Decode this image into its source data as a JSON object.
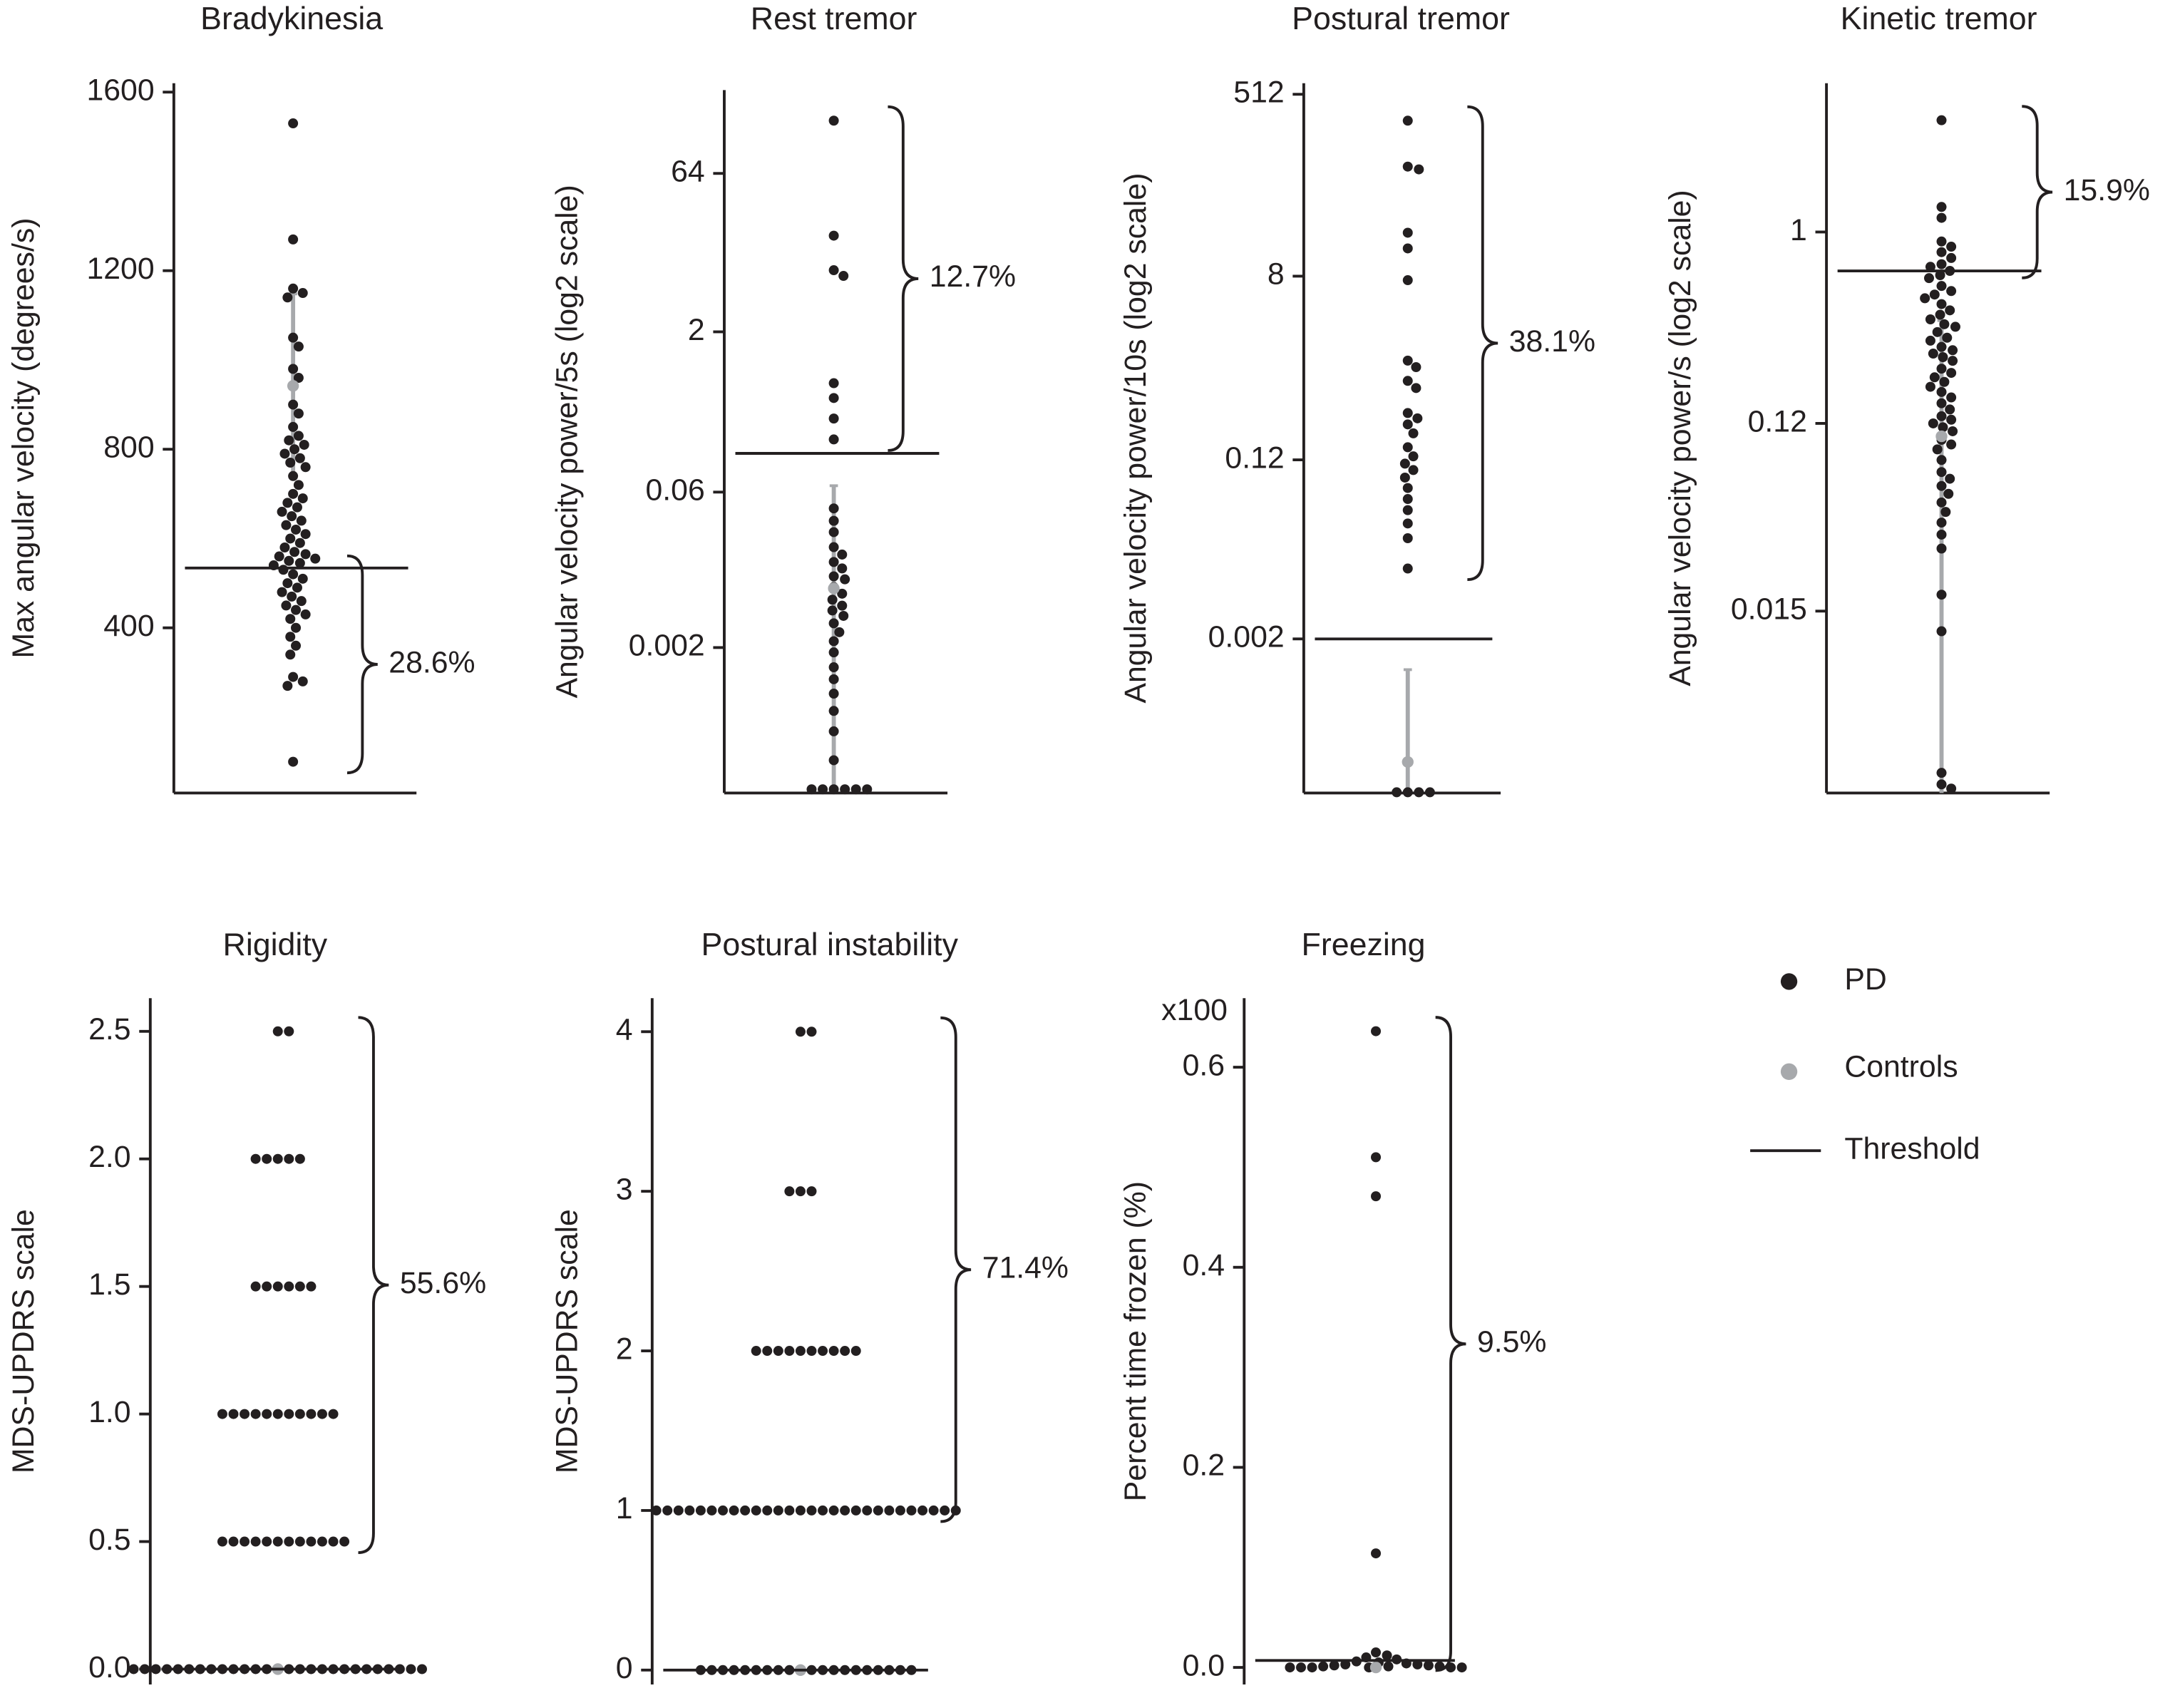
{
  "chart_data": [
    {
      "type": "strip",
      "title": "Bradykinesia",
      "ylabel": "Max angular velocity (degrees/s)",
      "ylim": [
        30,
        1620
      ],
      "yticks": [
        400,
        800,
        1200,
        1600
      ],
      "x_axis": true,
      "values": [
        1530,
        1270,
        1160,
        1150,
        1140,
        1050,
        1030,
        980,
        960,
        900,
        880,
        850,
        830,
        820,
        810,
        800,
        790,
        780,
        770,
        760,
        740,
        720,
        700,
        690,
        680,
        670,
        660,
        650,
        640,
        630,
        620,
        610,
        600,
        590,
        580,
        570,
        565,
        560,
        555,
        550,
        545,
        540,
        530,
        520,
        510,
        500,
        490,
        480,
        470,
        460,
        450,
        440,
        430,
        420,
        400,
        380,
        360,
        340,
        290,
        280,
        270,
        100
      ],
      "threshold": 534,
      "controls": {
        "mean": 942,
        "lower": 736,
        "upper": 1148
      },
      "annotation": "28.6%",
      "bracket": "below"
    },
    {
      "type": "strip",
      "title": "Rest tremor",
      "ylabel": "Angular velocity power/5s (log2 scale)",
      "log_base": 2,
      "ylim": [
        8.3e-05,
        396
      ],
      "yticks": [
        0.002,
        0.06,
        2,
        64
      ],
      "x_axis": true,
      "values": [
        203,
        16.4,
        7.7,
        6.8,
        0.65,
        0.47,
        0.3,
        0.19,
        0.042,
        0.032,
        0.025,
        0.018,
        0.0153,
        0.013,
        0.0113,
        0.0095,
        0.0089,
        0.0075,
        0.0065,
        0.0057,
        0.005,
        0.0045,
        0.004,
        0.0034,
        0.0028,
        0.0023,
        0.0018,
        0.0013,
        0.001,
        0.00073,
        0.0005,
        0.00032,
        0.00017,
        9e-05,
        9e-05,
        9e-05,
        9e-05,
        9e-05,
        9e-05
      ],
      "threshold": 0.14,
      "controls": {
        "mean": 0.0073,
        "upper": 0.069
      },
      "annotation": "12.7%",
      "bracket": "above"
    },
    {
      "type": "strip",
      "title": "Postural tremor",
      "ylabel": "Angular velocity power/10s (log2 scale)",
      "log_base": 2,
      "ylim": [
        5.9e-05,
        660
      ],
      "yticks": [
        0.002,
        0.12,
        8,
        512
      ],
      "x_axis": true,
      "values": [
        280,
        98,
        92,
        21.6,
        15.1,
        7.3,
        1.16,
        1,
        0.73,
        0.62,
        0.35,
        0.31,
        0.27,
        0.22,
        0.16,
        0.13,
        0.11,
        0.095,
        0.08,
        0.063,
        0.049,
        0.038,
        0.028,
        0.02,
        0.01,
        6e-05,
        6e-05,
        6e-05,
        6e-05
      ],
      "threshold": 0.002,
      "controls": {
        "mean": 0.00012,
        "upper": 0.00099
      },
      "annotation": "38.1%",
      "bracket": "above"
    },
    {
      "type": "strip",
      "title": "Kinetic tremor",
      "ylabel": "Angular velocity power/s (log2 scale)",
      "log_base": 2,
      "ylim": [
        0.002,
        5.2
      ],
      "yticks": [
        0.015,
        0.12,
        1
      ],
      "x_axis": true,
      "values": [
        3.45,
        1.32,
        1.17,
        0.9,
        0.85,
        0.8,
        0.75,
        0.7,
        0.68,
        0.65,
        0.62,
        0.6,
        0.55,
        0.52,
        0.5,
        0.48,
        0.45,
        0.42,
        0.4,
        0.38,
        0.36,
        0.35,
        0.33,
        0.31,
        0.3,
        0.28,
        0.27,
        0.26,
        0.25,
        0.24,
        0.22,
        0.21,
        0.2,
        0.19,
        0.18,
        0.17,
        0.16,
        0.15,
        0.14,
        0.13,
        0.125,
        0.12,
        0.115,
        0.11,
        0.1,
        0.095,
        0.09,
        0.08,
        0.07,
        0.065,
        0.06,
        0.055,
        0.05,
        0.045,
        0.04,
        0.035,
        0.03,
        0.018,
        0.012,
        0.0025,
        0.0022,
        0.0021
      ],
      "threshold": 0.65,
      "controls": {
        "mean": 0.104,
        "upper": 0.375
      },
      "annotation": "15.9%",
      "bracket": "above"
    },
    {
      "type": "strip",
      "title": "Rigidity",
      "ylabel": "MDS-UPDRS scale",
      "ylim": [
        -0.06,
        2.63
      ],
      "yticks": [
        {
          "value": 0,
          "label": "0.0"
        },
        {
          "value": 0.5,
          "label": "0.5"
        },
        {
          "value": 1,
          "label": "1.0"
        },
        {
          "value": 1.5,
          "label": "1.5"
        },
        {
          "value": 2,
          "label": "2.0"
        },
        {
          "value": 2.5,
          "label": "2.5"
        }
      ],
      "x_axis": false,
      "values": [
        2.5,
        2.5,
        2,
        2,
        2,
        2,
        2,
        1.5,
        1.5,
        1.5,
        1.5,
        1.5,
        1.5,
        1,
        1,
        1,
        1,
        1,
        1,
        1,
        1,
        1,
        1,
        1,
        0.5,
        0.5,
        0.5,
        0.5,
        0.5,
        0.5,
        0.5,
        0.5,
        0.5,
        0.5,
        0.5,
        0.5,
        0,
        0,
        0,
        0,
        0,
        0,
        0,
        0,
        0,
        0,
        0,
        0,
        0,
        0,
        0,
        0,
        0,
        0,
        0,
        0,
        0,
        0,
        0,
        0,
        0,
        0,
        0
      ],
      "threshold": 0,
      "controls": {
        "mean": 0
      },
      "annotation": "55.6%",
      "bracket": "above"
    },
    {
      "type": "strip",
      "title": "Postural instability",
      "ylabel": "MDS-UPDRS scale",
      "ylim": [
        -0.09,
        4.21
      ],
      "yticks": [
        0,
        1,
        2,
        3,
        4
      ],
      "x_axis": false,
      "values": [
        4,
        4,
        3,
        3,
        3,
        2,
        2,
        2,
        2,
        2,
        2,
        2,
        2,
        2,
        2,
        1,
        1,
        1,
        1,
        1,
        1,
        1,
        1,
        1,
        1,
        1,
        1,
        1,
        1,
        1,
        1,
        1,
        1,
        1,
        1,
        1,
        1,
        1,
        1,
        1,
        1,
        1,
        1,
        0,
        0,
        0,
        0,
        0,
        0,
        0,
        0,
        0,
        0,
        0,
        0,
        0,
        0,
        0,
        0,
        0,
        0,
        0,
        0
      ],
      "threshold": 0,
      "controls": {
        "mean": 0
      },
      "annotation": "71.4%",
      "bracket": "above"
    },
    {
      "type": "strip",
      "title": "Freezing",
      "ylabel": "Percent time frozen (%)",
      "axis_note": "x100",
      "ylim": [
        -0.017,
        0.669
      ],
      "yticks": [
        {
          "value": 0,
          "label": "0.0"
        },
        {
          "value": 0.2,
          "label": "0.2"
        },
        {
          "value": 0.4,
          "label": "0.4"
        },
        {
          "value": 0.6,
          "label": "0.6"
        }
      ],
      "x_axis": false,
      "values": [
        0.636,
        0.51,
        0.471,
        0.114,
        0.015,
        0.012,
        0.01,
        0.008,
        0.006,
        0.005,
        0.004,
        0.003,
        0.003,
        0.002,
        0.002,
        0.001,
        0.001,
        0.001,
        0,
        0,
        0,
        0,
        0,
        0
      ],
      "threshold": 0.007,
      "controls": {
        "mean": 0
      },
      "annotation": "9.5%",
      "bracket": "above"
    }
  ],
  "legend": [
    {
      "name": "PD",
      "color": "#231f20"
    },
    {
      "name": "Controls",
      "color": "#a7a9ac"
    },
    {
      "name": "Threshold",
      "color": "#231f20"
    }
  ]
}
